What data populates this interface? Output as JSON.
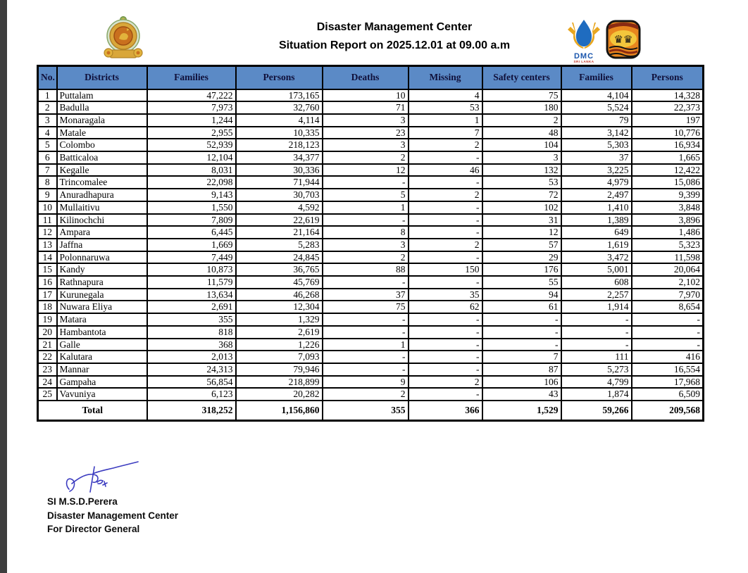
{
  "page": {
    "title_line1": "Disaster Management Center",
    "title_line2": "Situation Report on 2025.12.01 at 09.00 a.m"
  },
  "logos": {
    "dmc": {
      "label": "DMC",
      "sublabel": "SRI LANKA"
    }
  },
  "table": {
    "headers": [
      "No.",
      "Districts",
      "Families",
      "Persons",
      "Deaths",
      "Missing",
      "Safety centers",
      "Families",
      "Persons"
    ],
    "rows": [
      [
        "1",
        "Puttalam",
        "47,222",
        "173,165",
        "10",
        "4",
        "75",
        "4,104",
        "14,328"
      ],
      [
        "2",
        "Badulla",
        "7,973",
        "32,760",
        "71",
        "53",
        "180",
        "5,524",
        "22,373"
      ],
      [
        "3",
        "Monaragala",
        "1,244",
        "4,114",
        "3",
        "1",
        "2",
        "79",
        "197"
      ],
      [
        "4",
        "Matale",
        "2,955",
        "10,335",
        "23",
        "7",
        "48",
        "3,142",
        "10,776"
      ],
      [
        "5",
        "Colombo",
        "52,939",
        "218,123",
        "3",
        "2",
        "104",
        "5,303",
        "16,934"
      ],
      [
        "6",
        "Batticaloa",
        "12,104",
        "34,377",
        "2",
        "-",
        "3",
        "37",
        "1,665"
      ],
      [
        "7",
        "Kegalle",
        "8,031",
        "30,336",
        "12",
        "46",
        "132",
        "3,225",
        "12,422"
      ],
      [
        "8",
        "Trincomalee",
        "22,098",
        "71,944",
        "-",
        "-",
        "53",
        "4,979",
        "15,086"
      ],
      [
        "9",
        "Anuradhapura",
        "9,143",
        "30,703",
        "5",
        "2",
        "72",
        "2,497",
        "9,399"
      ],
      [
        "10",
        "Mullaitivu",
        "1,550",
        "4,592",
        "1",
        "-",
        "102",
        "1,410",
        "3,848"
      ],
      [
        "11",
        "Kilinochchi",
        "7,809",
        "22,619",
        "-",
        "-",
        "31",
        "1,389",
        "3,896"
      ],
      [
        "12",
        "Ampara",
        "6,445",
        "21,164",
        "8",
        "-",
        "12",
        "649",
        "1,486"
      ],
      [
        "13",
        "Jaffna",
        "1,669",
        "5,283",
        "3",
        "2",
        "57",
        "1,619",
        "5,323"
      ],
      [
        "14",
        "Polonnaruwa",
        "7,449",
        "24,845",
        "2",
        "-",
        "29",
        "3,472",
        "11,598"
      ],
      [
        "15",
        "Kandy",
        "10,873",
        "36,765",
        "88",
        "150",
        "176",
        "5,001",
        "20,064"
      ],
      [
        "16",
        "Rathnapura",
        "11,579",
        "45,769",
        "-",
        "-",
        "55",
        "608",
        "2,102"
      ],
      [
        "17",
        "Kurunegala",
        "13,634",
        "46,268",
        "37",
        "35",
        "94",
        "2,257",
        "7,970"
      ],
      [
        "18",
        "Nuwara Eliya",
        "2,691",
        "12,304",
        "75",
        "62",
        "61",
        "1,914",
        "8,654"
      ],
      [
        "19",
        "Matara",
        "355",
        "1,329",
        "-",
        "-",
        "-",
        "-",
        "-"
      ],
      [
        "20",
        "Hambantota",
        "818",
        "2,619",
        "-",
        "-",
        "-",
        "-",
        "-"
      ],
      [
        "21",
        "Galle",
        "368",
        "1,226",
        "1",
        "-",
        "-",
        "-",
        "-"
      ],
      [
        "22",
        "Kalutara",
        "2,013",
        "7,093",
        "-",
        "-",
        "7",
        "111",
        "416"
      ],
      [
        "23",
        "Mannar",
        "24,313",
        "79,946",
        "-",
        "-",
        "87",
        "5,273",
        "16,554"
      ],
      [
        "24",
        "Gampaha",
        "56,854",
        "218,899",
        "9",
        "2",
        "106",
        "4,799",
        "17,968"
      ],
      [
        "25",
        "Vavuniya",
        "6,123",
        "20,282",
        "2",
        "-",
        "43",
        "1,874",
        "6,509"
      ]
    ],
    "total": {
      "label": "Total",
      "values": [
        "318,252",
        "1,156,860",
        "355",
        "366",
        "1,529",
        "59,266",
        "209,568"
      ]
    }
  },
  "footer": {
    "signatory": "SI M.S.D.Perera",
    "organization": "Disaster Management Center",
    "designation": "For Director General"
  },
  "colors": {
    "header_blue": "#5b8ac6",
    "signature_blue": "#3c3cc0"
  }
}
